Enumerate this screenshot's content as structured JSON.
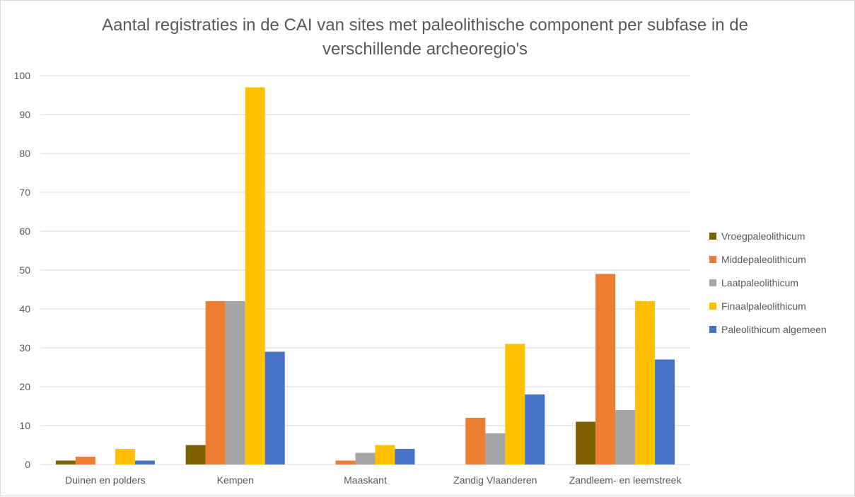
{
  "chart_data": {
    "type": "bar",
    "title": "Aantal registraties in de CAI van sites met paleolithische component per subfase in de verschillende archeoregio's",
    "title_lines": [
      "Aantal registraties in de CAI van sites met paleolithische component per subfase in de",
      "verschillende archeoregio's"
    ],
    "xlabel": "",
    "ylabel": "",
    "ylim": [
      0,
      100
    ],
    "yticks": [
      0,
      10,
      20,
      30,
      40,
      50,
      60,
      70,
      80,
      90,
      100
    ],
    "grid": true,
    "legend_position": "right",
    "categories": [
      "Duinen en polders",
      "Kempen",
      "Maaskant",
      "Zandig Vlaanderen",
      "Zandleem- en leemstreek"
    ],
    "series": [
      {
        "name": "Vroegpaleolithicum",
        "color": "#7f6000",
        "values": [
          1,
          5,
          0,
          0,
          11
        ]
      },
      {
        "name": "Middepaleolithicum",
        "color": "#ed7d31",
        "values": [
          2,
          42,
          1,
          12,
          49
        ]
      },
      {
        "name": "Laatpaleolithicum",
        "color": "#a5a5a5",
        "values": [
          0,
          42,
          3,
          8,
          14
        ]
      },
      {
        "name": "Finaalpaleolithicum",
        "color": "#ffc000",
        "values": [
          4,
          97,
          5,
          31,
          42
        ]
      },
      {
        "name": "Paleolithicum algemeen",
        "color": "#4472c4",
        "values": [
          1,
          29,
          4,
          18,
          27
        ]
      }
    ]
  }
}
